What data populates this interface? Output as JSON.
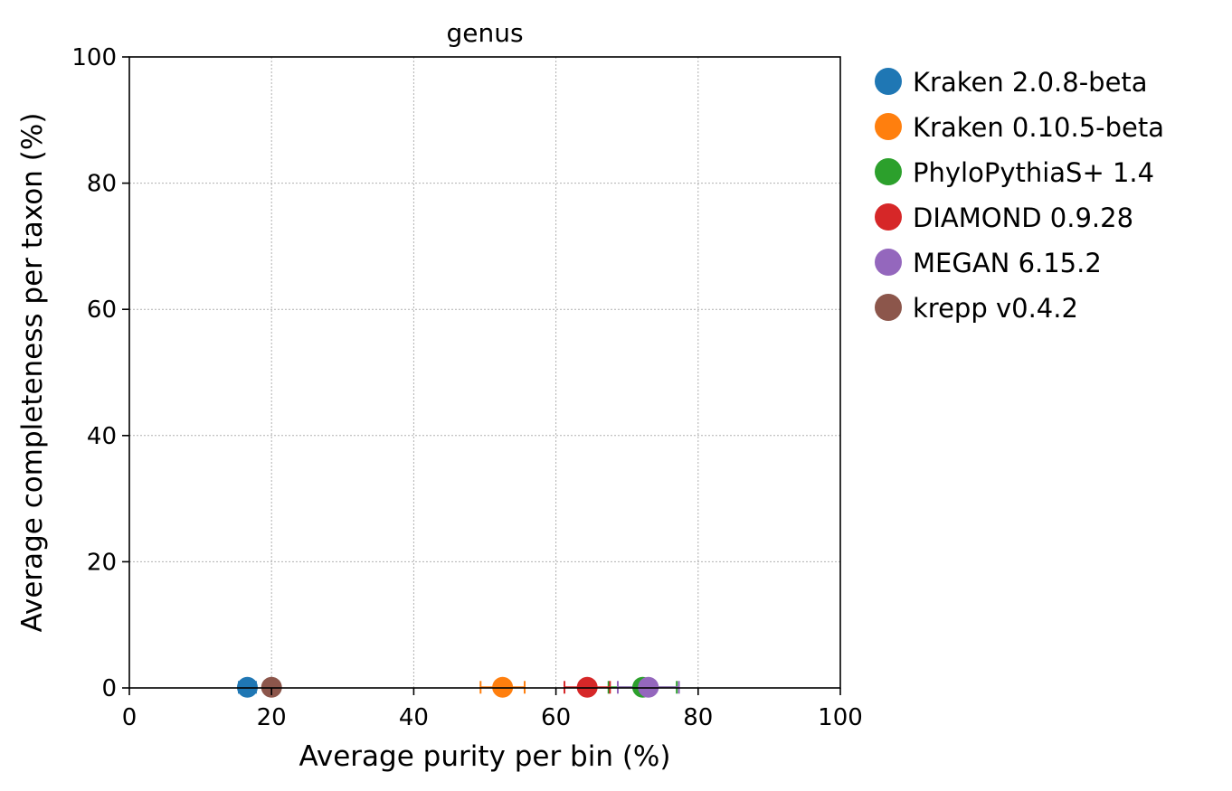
{
  "chart_data": {
    "type": "scatter",
    "title": "genus",
    "xlabel": "Average purity per bin (%)",
    "ylabel": "Average completeness per taxon (%)",
    "xlim": [
      0,
      100
    ],
    "ylim": [
      0,
      100
    ],
    "xticks": [
      "0",
      "20",
      "40",
      "60",
      "80",
      "100"
    ],
    "yticks": [
      "0",
      "20",
      "40",
      "60",
      "80",
      "100"
    ],
    "grid": true,
    "legend_position": "outside-right",
    "series": [
      {
        "name": "Kraken 2.0.8-beta",
        "color": "#1f77b4",
        "x": 16.6,
        "y": 0.1,
        "xerr": 1.2
      },
      {
        "name": "Kraken 0.10.5-beta",
        "color": "#ff7f0e",
        "x": 52.5,
        "y": 0.1,
        "xerr": 3.1
      },
      {
        "name": "PhyloPythiaS+ 1.4",
        "color": "#2ca02c",
        "x": 72.2,
        "y": 0.1,
        "xerr": 4.8
      },
      {
        "name": "DIAMOND 0.9.28",
        "color": "#d62728",
        "x": 64.4,
        "y": 0.1,
        "xerr": 3.2
      },
      {
        "name": "MEGAN 6.15.2",
        "color": "#9467bd",
        "x": 73.0,
        "y": 0.1,
        "xerr": 4.3
      },
      {
        "name": "krepp v0.4.2",
        "color": "#8c564b",
        "x": 20.0,
        "y": 0.1,
        "xerr": 1.0
      }
    ]
  }
}
